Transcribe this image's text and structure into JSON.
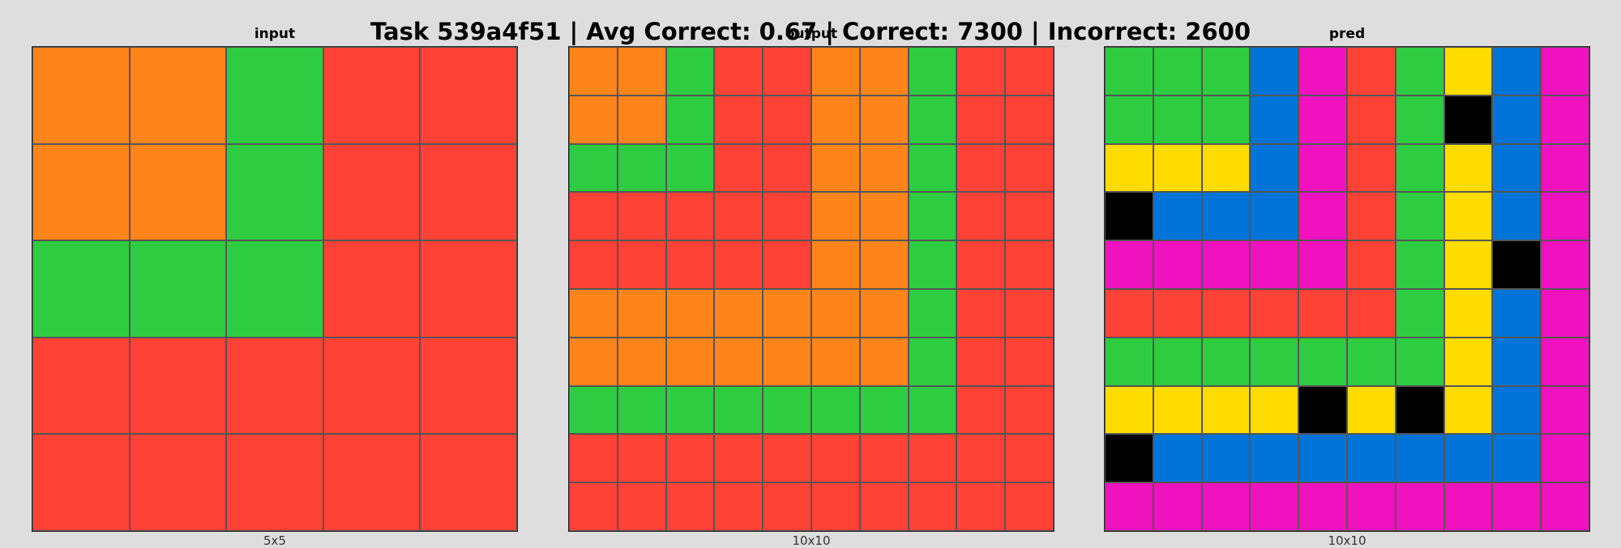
{
  "title": "Task 539a4f51 | Avg Correct: 0.67 | Correct: 7300 | Incorrect: 2600",
  "palette": {
    "0": "#000000",
    "1": "#0074d9",
    "2": "#ff4136",
    "3": "#2ecc40",
    "4": "#ffdc00",
    "5": "#aaaaaa",
    "6": "#f012be",
    "7": "#ff851b"
  },
  "panels": [
    {
      "label": "input",
      "dims": "5x5",
      "rows": [
        [
          7,
          7,
          3,
          2,
          2
        ],
        [
          7,
          7,
          3,
          2,
          2
        ],
        [
          3,
          3,
          3,
          2,
          2
        ],
        [
          2,
          2,
          2,
          2,
          2
        ],
        [
          2,
          2,
          2,
          2,
          2
        ]
      ]
    },
    {
      "label": "output",
      "dims": "10x10",
      "rows": [
        [
          7,
          7,
          3,
          2,
          2,
          7,
          7,
          3,
          2,
          2
        ],
        [
          7,
          7,
          3,
          2,
          2,
          7,
          7,
          3,
          2,
          2
        ],
        [
          3,
          3,
          3,
          2,
          2,
          7,
          7,
          3,
          2,
          2
        ],
        [
          2,
          2,
          2,
          2,
          2,
          7,
          7,
          3,
          2,
          2
        ],
        [
          2,
          2,
          2,
          2,
          2,
          7,
          7,
          3,
          2,
          2
        ],
        [
          7,
          7,
          7,
          7,
          7,
          7,
          7,
          3,
          2,
          2
        ],
        [
          7,
          7,
          7,
          7,
          7,
          7,
          7,
          3,
          2,
          2
        ],
        [
          3,
          3,
          3,
          3,
          3,
          3,
          3,
          3,
          2,
          2
        ],
        [
          2,
          2,
          2,
          2,
          2,
          2,
          2,
          2,
          2,
          2
        ],
        [
          2,
          2,
          2,
          2,
          2,
          2,
          2,
          2,
          2,
          2
        ]
      ]
    },
    {
      "label": "pred",
      "dims": "10x10",
      "rows": [
        [
          3,
          3,
          3,
          1,
          6,
          2,
          3,
          4,
          1,
          6
        ],
        [
          3,
          3,
          3,
          1,
          6,
          2,
          3,
          0,
          1,
          6
        ],
        [
          4,
          4,
          4,
          1,
          6,
          2,
          3,
          4,
          1,
          6
        ],
        [
          0,
          1,
          1,
          1,
          6,
          2,
          3,
          4,
          1,
          6
        ],
        [
          6,
          6,
          6,
          6,
          6,
          2,
          3,
          4,
          0,
          6
        ],
        [
          2,
          2,
          2,
          2,
          2,
          2,
          3,
          4,
          1,
          6
        ],
        [
          3,
          3,
          3,
          3,
          3,
          3,
          3,
          4,
          1,
          6
        ],
        [
          4,
          4,
          4,
          4,
          0,
          4,
          0,
          4,
          1,
          6
        ],
        [
          0,
          1,
          1,
          1,
          1,
          1,
          1,
          1,
          1,
          6
        ],
        [
          6,
          6,
          6,
          6,
          6,
          6,
          6,
          6,
          6,
          6
        ]
      ]
    }
  ]
}
